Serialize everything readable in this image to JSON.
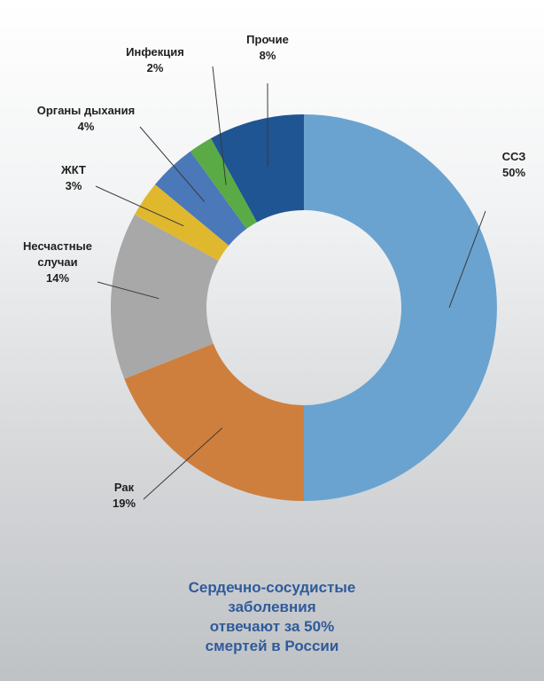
{
  "chart_data": {
    "type": "pie",
    "variant": "donut",
    "title": "",
    "slices": [
      {
        "name": "ССЗ",
        "value": 50,
        "value_label": "50%",
        "color": "#6aa3cf"
      },
      {
        "name": "Рак",
        "value": 19,
        "value_label": "19%",
        "color": "#cf7f3d"
      },
      {
        "name": "Несчастные случаи",
        "value": 14,
        "value_label": "14%",
        "color": "#a8a8a8"
      },
      {
        "name": "ЖКТ",
        "value": 3,
        "value_label": "3%",
        "color": "#e0b82e"
      },
      {
        "name": "Органы дыхания",
        "value": 4,
        "value_label": "4%",
        "color": "#4a78b8"
      },
      {
        "name": "Инфекция",
        "value": 2,
        "value_label": "2%",
        "color": "#5aab46"
      },
      {
        "name": "Прочие",
        "value": 8,
        "value_label": "8%",
        "color": "#1f5592"
      }
    ],
    "legend": "none",
    "labels": "outside-with-leader-lines"
  },
  "caption": {
    "lines": [
      "Сердечно-сосудистые",
      "заболевния",
      "отвечают за 50%",
      "смертей в России"
    ],
    "color": "#2f5b9a"
  }
}
